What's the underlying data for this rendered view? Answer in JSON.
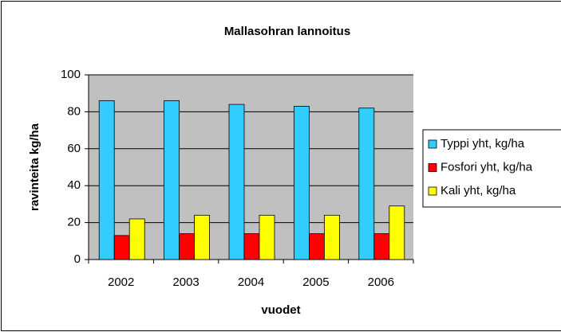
{
  "chart_data": {
    "type": "bar",
    "title": "Mallasohran lannoitus",
    "x_label": "vuodet",
    "y_label": "ravinteita kg/ha",
    "categories": [
      "2002",
      "2003",
      "2004",
      "2005",
      "2006"
    ],
    "series": [
      {
        "name": "Typpi yht, kg/ha",
        "color": "#33ccff",
        "values": [
          86,
          86,
          84,
          83,
          82
        ]
      },
      {
        "name": "Fosfori yht, kg/ha",
        "color": "#ff0000",
        "values": [
          13,
          14,
          14,
          14,
          14
        ]
      },
      {
        "name": "Kali yht, kg/ha",
        "color": "#ffff00",
        "values": [
          22,
          24,
          24,
          24,
          29
        ]
      }
    ],
    "ylim": [
      0,
      100
    ],
    "yticks": [
      0,
      20,
      40,
      60,
      80,
      100
    ],
    "grid": true,
    "legend": "right"
  }
}
